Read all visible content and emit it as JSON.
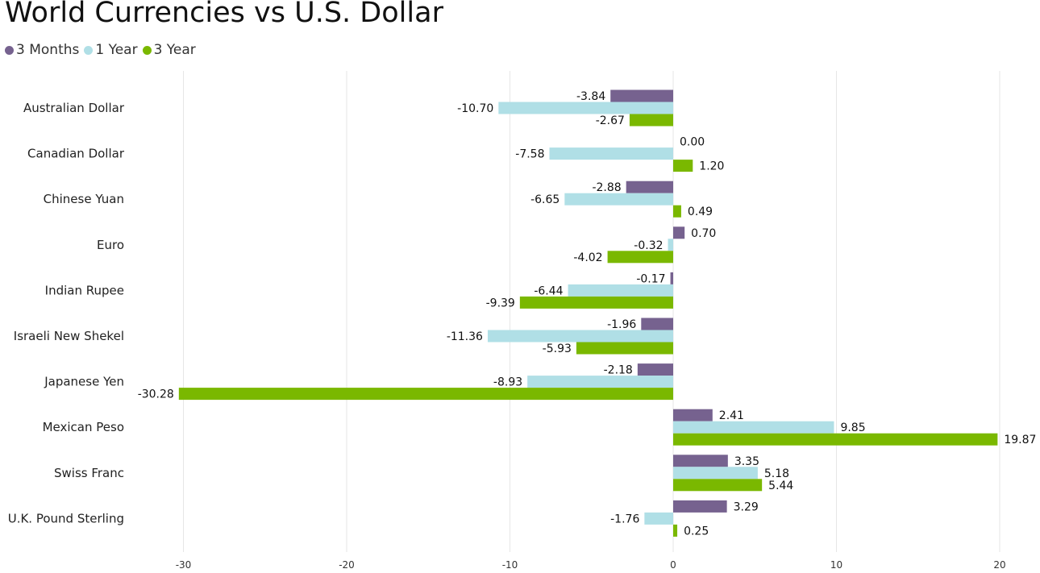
{
  "title": "World Currencies vs U.S. Dollar",
  "chart_data": {
    "type": "bar",
    "orientation": "horizontal",
    "title": "World Currencies vs U.S. Dollar",
    "xlabel": "",
    "ylabel": "",
    "xlim": [
      -33,
      21
    ],
    "xticks": [
      -30,
      -20,
      -10,
      0,
      10,
      20
    ],
    "tick_labels": [
      "-30",
      "-20",
      "-10",
      "0",
      "10",
      "20"
    ],
    "grid": "vertical",
    "legend_position": "top-left",
    "categories": [
      "Australian Dollar",
      "Canadian Dollar",
      "Chinese Yuan",
      "Euro",
      "Indian Rupee",
      "Israeli New Shekel",
      "Japanese Yen",
      "Mexican Peso",
      "Swiss Franc",
      "U.K. Pound Sterling"
    ],
    "series": [
      {
        "name": "3 Months",
        "color": "#76628f",
        "values": [
          -3.84,
          0.0,
          -2.88,
          0.7,
          -0.17,
          -1.96,
          -2.18,
          2.41,
          3.35,
          3.29
        ],
        "labels": [
          "-3.84",
          "0.00",
          "-2.88",
          "0.70",
          "-0.17",
          "-1.96",
          "-2.18",
          "2.41",
          "3.35",
          "3.29"
        ]
      },
      {
        "name": "1 Year",
        "color": "#b0dfe6",
        "values": [
          -10.7,
          -7.58,
          -6.65,
          -0.32,
          -6.44,
          -11.36,
          -8.93,
          9.85,
          5.18,
          -1.76
        ],
        "labels": [
          "-10.70",
          "-7.58",
          "-6.65",
          "-0.32",
          "-6.44",
          "-11.36",
          "-8.93",
          "9.85",
          "5.18",
          "-1.76"
        ]
      },
      {
        "name": "3 Year",
        "color": "#7ab800",
        "values": [
          -2.67,
          1.2,
          0.49,
          -4.02,
          -9.39,
          -5.93,
          -30.28,
          19.87,
          5.44,
          0.25
        ],
        "labels": [
          "-2.67",
          "1.20",
          "0.49",
          "-4.02",
          "-9.39",
          "-5.93",
          "-30.28",
          "19.87",
          "5.44",
          "0.25"
        ]
      }
    ]
  }
}
